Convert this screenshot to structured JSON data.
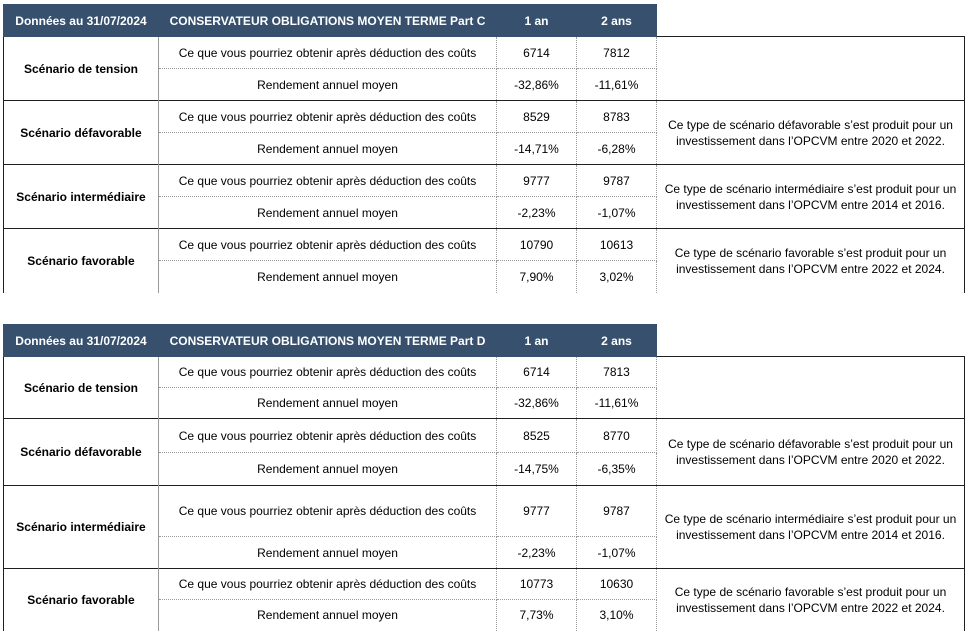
{
  "tables": [
    {
      "header": {
        "date": "Données au 31/07/2024",
        "fund": "CONSERVATEUR OBLIGATIONS MOYEN TERME Part C",
        "col_1an": "1 an",
        "col_2ans": "2 ans"
      },
      "scenarios": [
        {
          "name": "Scénario de tension",
          "row1_label": "Ce que vous pourriez obtenir après déduction des coûts",
          "row1_1an": "6714",
          "row1_2ans": "7812",
          "row2_label": "Rendement annuel moyen",
          "row2_1an": "-32,86%",
          "row2_2ans": "-11,61%",
          "note": ""
        },
        {
          "name": "Scénario défavorable",
          "row1_label": "Ce que vous pourriez obtenir après déduction des coûts",
          "row1_1an": "8529",
          "row1_2ans": "8783",
          "row2_label": "Rendement annuel moyen",
          "row2_1an": "-14,71%",
          "row2_2ans": "-6,28%",
          "note": "Ce type de scénario défavorable s’est produit pour un investissement dans l’OPCVM entre 2020 et 2022."
        },
        {
          "name": "Scénario intermédiaire",
          "row1_label": "Ce que vous pourriez obtenir après déduction des coûts",
          "row1_1an": "9777",
          "row1_2ans": "9787",
          "row2_label": "Rendement annuel moyen",
          "row2_1an": "-2,23%",
          "row2_2ans": "-1,07%",
          "note": "Ce type de scénario intermédiaire s’est produit pour un investissement dans l’OPCVM entre 2014 et 2016."
        },
        {
          "name": "Scénario favorable",
          "row1_label": "Ce que vous pourriez obtenir après déduction des coûts",
          "row1_1an": "10790",
          "row1_2ans": "10613",
          "row2_label": "Rendement annuel moyen",
          "row2_1an": "7,90%",
          "row2_2ans": "3,02%",
          "note": "Ce type de scénario favorable s’est produit pour un investissement dans l’OPCVM entre 2022 et 2024."
        }
      ]
    },
    {
      "header": {
        "date": "Données au 31/07/2024",
        "fund": "CONSERVATEUR OBLIGATIONS MOYEN TERME Part D",
        "col_1an": "1 an",
        "col_2ans": "2 ans"
      },
      "scenarios": [
        {
          "name": "Scénario de tension",
          "row1_label": "Ce que vous pourriez obtenir après déduction des coûts",
          "row1_1an": "6714",
          "row1_2ans": "7813",
          "row2_label": "Rendement annuel moyen",
          "row2_1an": "-32,86%",
          "row2_2ans": "-11,61%",
          "note": ""
        },
        {
          "name": "Scénario défavorable",
          "row1_label": "Ce que vous pourriez obtenir après déduction des coûts",
          "row1_1an": "8525",
          "row1_2ans": "8770",
          "row2_label": "Rendement annuel moyen",
          "row2_1an": "-14,75%",
          "row2_2ans": "-6,35%",
          "note": "Ce type de scénario défavorable s’est produit pour un investissement dans l’OPCVM entre 2020 et 2022."
        },
        {
          "name": "Scénario intermédiaire",
          "row1_label": "Ce que vous pourriez obtenir après déduction des coûts",
          "row1_1an": "9777",
          "row1_2ans": "9787",
          "row2_label": "Rendement annuel moyen",
          "row2_1an": "-2,23%",
          "row2_2ans": "-1,07%",
          "note": "Ce type de scénario intermédiaire s’est produit pour un investissement dans l’OPCVM entre 2014 et 2016."
        },
        {
          "name": "Scénario favorable",
          "row1_label": "Ce que vous pourriez obtenir après déduction des coûts",
          "row1_1an": "10773",
          "row1_2ans": "10630",
          "row2_label": "Rendement annuel moyen",
          "row2_1an": "7,73%",
          "row2_2ans": "3,10%",
          "note": "Ce type de scénario favorable s’est produit pour un investissement dans l’OPCVM entre 2022 et 2024."
        }
      ]
    }
  ]
}
